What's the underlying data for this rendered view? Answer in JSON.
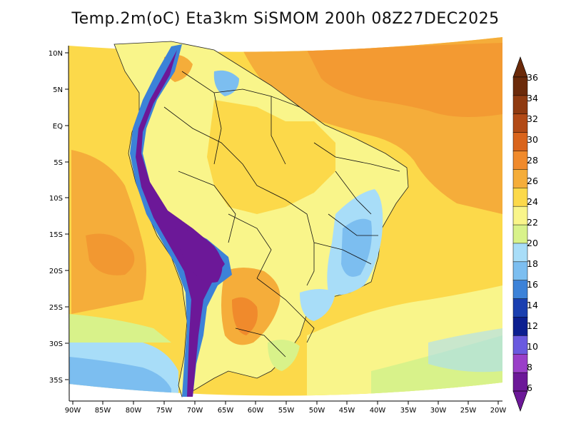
{
  "title": "Temp.2m(oC) Eta3km SiSMOM 200h 08Z27DEC2025",
  "map": {
    "y_ticks": [
      "10N",
      "5N",
      "EQ",
      "5S",
      "10S",
      "15S",
      "20S",
      "25S",
      "30S",
      "35S"
    ],
    "x_ticks": [
      "90W",
      "85W",
      "80W",
      "75W",
      "70W",
      "65W",
      "60W",
      "55W",
      "50W",
      "45W",
      "40W",
      "35W",
      "30W",
      "25W",
      "20W"
    ]
  },
  "colorbar": {
    "labels": [
      "36",
      "34",
      "32",
      "30",
      "28",
      "26",
      "24",
      "22",
      "20",
      "18",
      "16",
      "14",
      "12",
      "10",
      "8",
      "6"
    ],
    "colors": [
      "#6b2a0a",
      "#8f3a10",
      "#b24a16",
      "#d9641c",
      "#f08a2c",
      "#f5ad3a",
      "#fcd94a",
      "#f9f58a",
      "#d8f28a",
      "#a8ddf8",
      "#7cbef0",
      "#3c82d8",
      "#1a3fb0",
      "#0c1f90",
      "#6a5adf",
      "#9a3fc8",
      "#6c1898"
    ]
  }
}
